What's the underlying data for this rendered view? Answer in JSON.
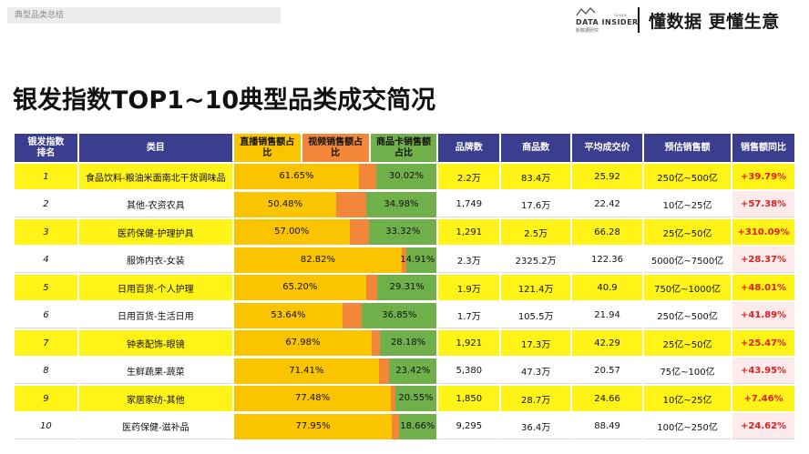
{
  "breadcrumb": "典型品类总结",
  "brand": {
    "en": "DATA INSIDER",
    "cn": "新数据研究",
    "small": "Google"
  },
  "slogan": "懂数据 更懂生意",
  "title": "银发指数TOP1~10典型品类成交简况",
  "headers": {
    "rank": "银发指数排名",
    "category": "类目",
    "live": "直播销售额占比",
    "video": "视频销售额占比",
    "card": "商品卡销售额占比",
    "brands": "品牌数",
    "products": "商品数",
    "avg_price": "平均成交价",
    "est_sales": "预估销售额",
    "yoy": "销售额同比"
  },
  "colors": {
    "live": "#fbc400",
    "video": "#f2873a",
    "card": "#6fb04a",
    "header": "#3b3e8f",
    "highlight": "#fff317",
    "yoy": "#e02020"
  },
  "rows": [
    {
      "rank": "1",
      "category": "食品饮料-粮油米面南北干货调味品",
      "live_pct": 61.65,
      "live": "61.65%",
      "card_pct": 30.02,
      "card": "30.02%",
      "brands": "2.2万",
      "products": "83.4万",
      "avg_price": "25.92",
      "est_sales": "250亿~500亿",
      "yoy": "+39.79%"
    },
    {
      "rank": "2",
      "category": "其他-农资农具",
      "live_pct": 50.48,
      "live": "50.48%",
      "card_pct": 34.98,
      "card": "34.98%",
      "brands": "1,749",
      "products": "17.6万",
      "avg_price": "22.42",
      "est_sales": "10亿~25亿",
      "yoy": "+57.38%"
    },
    {
      "rank": "3",
      "category": "医药保健-护理护具",
      "live_pct": 57.0,
      "live": "57.00%",
      "card_pct": 33.32,
      "card": "33.32%",
      "brands": "1,291",
      "products": "2.5万",
      "avg_price": "66.28",
      "est_sales": "25亿~50亿",
      "yoy": "+310.09%"
    },
    {
      "rank": "4",
      "category": "服饰内衣-女装",
      "live_pct": 82.82,
      "live": "82.82%",
      "card_pct": 14.91,
      "card": "14.91%",
      "brands": "2.3万",
      "products": "2325.2万",
      "avg_price": "122.36",
      "est_sales": "5000亿~7500亿",
      "yoy": "+28.37%"
    },
    {
      "rank": "5",
      "category": "日用百货-个人护理",
      "live_pct": 65.2,
      "live": "65.20%",
      "card_pct": 29.31,
      "card": "29.31%",
      "brands": "1.9万",
      "products": "121.4万",
      "avg_price": "40.9",
      "est_sales": "750亿~1000亿",
      "yoy": "+48.01%"
    },
    {
      "rank": "6",
      "category": "日用百货-生活日用",
      "live_pct": 53.64,
      "live": "53.64%",
      "card_pct": 36.85,
      "card": "36.85%",
      "brands": "1.7万",
      "products": "105.5万",
      "avg_price": "21.94",
      "est_sales": "250亿~500亿",
      "yoy": "+41.89%"
    },
    {
      "rank": "7",
      "category": "钟表配饰-眼镜",
      "live_pct": 67.98,
      "live": "67.98%",
      "card_pct": 28.18,
      "card": "28.18%",
      "brands": "1,921",
      "products": "17.3万",
      "avg_price": "42.29",
      "est_sales": "25亿~50亿",
      "yoy": "+25.47%"
    },
    {
      "rank": "8",
      "category": "生鲜蔬果-蔬菜",
      "live_pct": 71.41,
      "live": "71.41%",
      "card_pct": 23.42,
      "card": "23.42%",
      "brands": "5,380",
      "products": "47.3万",
      "avg_price": "20.57",
      "est_sales": "75亿~100亿",
      "yoy": "+43.95%"
    },
    {
      "rank": "9",
      "category": "家居家纺-其他",
      "live_pct": 77.48,
      "live": "77.48%",
      "card_pct": 20.55,
      "card": "20.55%",
      "brands": "1,850",
      "products": "28.7万",
      "avg_price": "24.66",
      "est_sales": "10亿~25亿",
      "yoy": "+7.46%"
    },
    {
      "rank": "10",
      "category": "医药保健-滋补品",
      "live_pct": 77.95,
      "live": "77.95%",
      "card_pct": 18.66,
      "card": "18.66%",
      "brands": "9,295",
      "products": "36.4万",
      "avg_price": "88.49",
      "est_sales": "100亿~250亿",
      "yoy": "+24.62%"
    }
  ]
}
